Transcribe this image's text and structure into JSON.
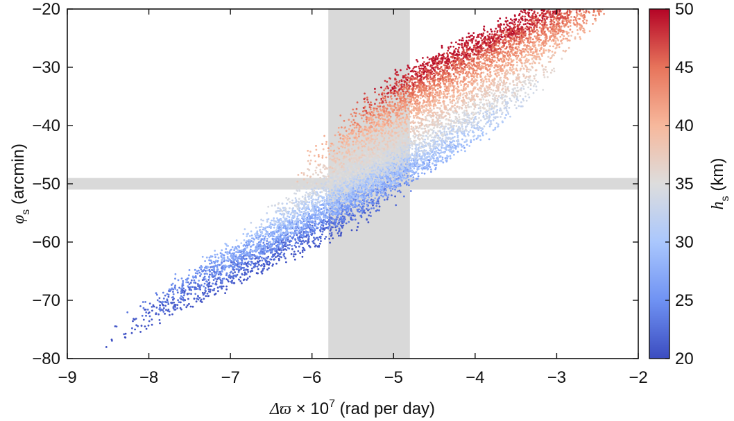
{
  "chart_data": {
    "type": "scatter",
    "xlabel_parts": {
      "symbol": "Δϖ",
      "multiplier": "× 10",
      "exponent": "7",
      "unit": "(rad per day)"
    },
    "ylabel_parts": {
      "symbol": "φ",
      "subscript": "s",
      "unit": "(arcmin)"
    },
    "colorbar_label_parts": {
      "symbol": "h",
      "subscript": "s",
      "unit": "(km)"
    },
    "xlim": [
      -9,
      -2
    ],
    "ylim": [
      -80,
      -20
    ],
    "xticks": [
      -9,
      -8,
      -7,
      -6,
      -5,
      -4,
      -3,
      -2
    ],
    "yticks": [
      -80,
      -70,
      -60,
      -50,
      -40,
      -30,
      -20
    ],
    "xtick_labels": [
      "−9",
      "−8",
      "−7",
      "−6",
      "−5",
      "−4",
      "−3",
      "−2"
    ],
    "ytick_labels": [
      "−80",
      "−70",
      "−60",
      "−50",
      "−40",
      "−30",
      "−20"
    ],
    "colorbar": {
      "range": [
        20,
        50
      ],
      "ticks": [
        20,
        25,
        30,
        35,
        40,
        45,
        50
      ],
      "tick_labels": [
        "20",
        "25",
        "30",
        "35",
        "40",
        "45",
        "50"
      ],
      "colormap": "coolwarm",
      "stops": [
        "#3b4cc0",
        "#6f92f3",
        "#aac7fd",
        "#dddddd",
        "#f7b89c",
        "#e7745b",
        "#b40426"
      ]
    },
    "shaded_bands": [
      {
        "orientation": "vertical",
        "x_range": [
          -5.8,
          -4.8
        ],
        "color": "#d9d9d9"
      },
      {
        "orientation": "horizontal",
        "y_range": [
          -51,
          -49
        ],
        "color": "#d9d9d9"
      }
    ],
    "point_model": {
      "n_points": 9000,
      "h_range": [
        20,
        50
      ],
      "phi_center_by_h": [
        [
          20,
          -66
        ],
        [
          25,
          -58
        ],
        [
          30,
          -50
        ],
        [
          35,
          -42
        ],
        [
          40,
          -34
        ],
        [
          45,
          -27
        ],
        [
          50,
          -22
        ]
      ],
      "dw_center_by_h": [
        [
          20,
          -6.9
        ],
        [
          25,
          -6.2
        ],
        [
          30,
          -5.3
        ],
        [
          35,
          -4.7
        ],
        [
          40,
          -4.3
        ],
        [
          45,
          -3.8
        ],
        [
          50,
          -3.5
        ]
      ],
      "slope_phi_per_dw": 8.2,
      "x_spread": 1.8
    }
  }
}
